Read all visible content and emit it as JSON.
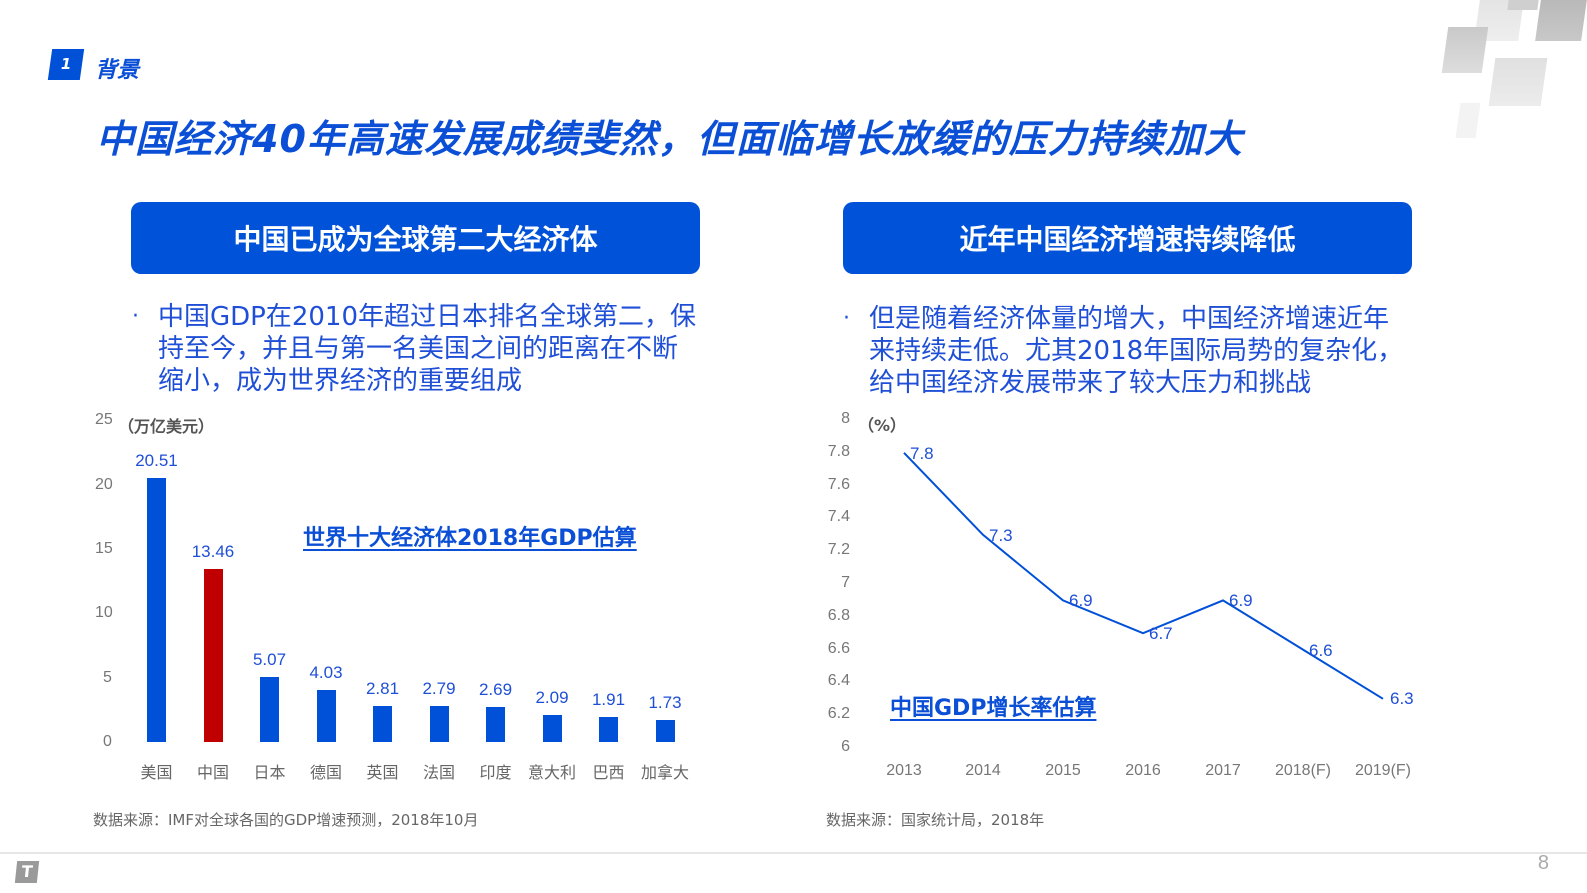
{
  "section": {
    "number": "1",
    "title": "背景"
  },
  "headline": "中国经济40年高速发展成绩斐然，但面临增长放缓的压力持续加大",
  "left_panel": {
    "pill_title": "中国已成为全球第二大经济体",
    "bullet_lines": [
      "中国GDP在2010年超过日本排名全球第二，保",
      "持至今，并且与第一名美国之间的距离在不断",
      "缩小，成为世界经济的重要组成"
    ],
    "bullet_symbol": "·",
    "source": "数据来源：IMF对全球各国的GDP增速预测，2018年10月"
  },
  "right_panel": {
    "pill_title": "近年中国经济增速持续降低",
    "bullet_lines": [
      "但是随着经济体量的增大，中国经济增速近年",
      "来持续走低。尤其2018年国际局势的复杂化，",
      "给中国经济发展带来了较大压力和挑战"
    ],
    "bullet_symbol": "·",
    "source": "数据来源：国家统计局，2018年"
  },
  "colors": {
    "accent": "#0050d8",
    "highlight": "#c00000",
    "axis_text": "#777777"
  },
  "footer": {
    "logo_glyph": "T",
    "page_number": "8"
  },
  "chart_data": [
    {
      "type": "bar",
      "title": "世界十大经济体2018年GDP估算",
      "ylabel": "（万亿美元）",
      "xlabel": "",
      "ylim": [
        0,
        25
      ],
      "yticks": [
        0,
        5,
        10,
        15,
        20,
        25
      ],
      "grid": false,
      "categories": [
        "美国",
        "中国",
        "日本",
        "德国",
        "英国",
        "法国",
        "印度",
        "意大利",
        "巴西",
        "加拿大"
      ],
      "values": [
        20.51,
        13.46,
        5.07,
        4.03,
        2.81,
        2.79,
        2.69,
        2.09,
        1.91,
        1.73
      ],
      "value_labels": [
        "20.51",
        "13.46",
        "5.07",
        "4.03",
        "2.81",
        "2.79",
        "2.69",
        "2.09",
        "1.91",
        "1.73"
      ],
      "highlight_category": "中国"
    },
    {
      "type": "line",
      "title": "中国GDP增长率估算",
      "ylabel": "（%）",
      "xlabel": "",
      "ylim": [
        6,
        8
      ],
      "yticks": [
        "6",
        "6.2",
        "6.4",
        "6.6",
        "6.8",
        "7",
        "7.2",
        "7.4",
        "7.6",
        "7.8",
        "8"
      ],
      "grid": false,
      "x": [
        "2013",
        "2014",
        "2015",
        "2016",
        "2017",
        "2018(F)",
        "2019(F)"
      ],
      "values": [
        7.8,
        7.3,
        6.9,
        6.7,
        6.9,
        6.6,
        6.3
      ],
      "value_labels": [
        "7.8",
        "7.3",
        "6.9",
        "6.7",
        "6.9",
        "6.6",
        "6.3"
      ]
    }
  ]
}
